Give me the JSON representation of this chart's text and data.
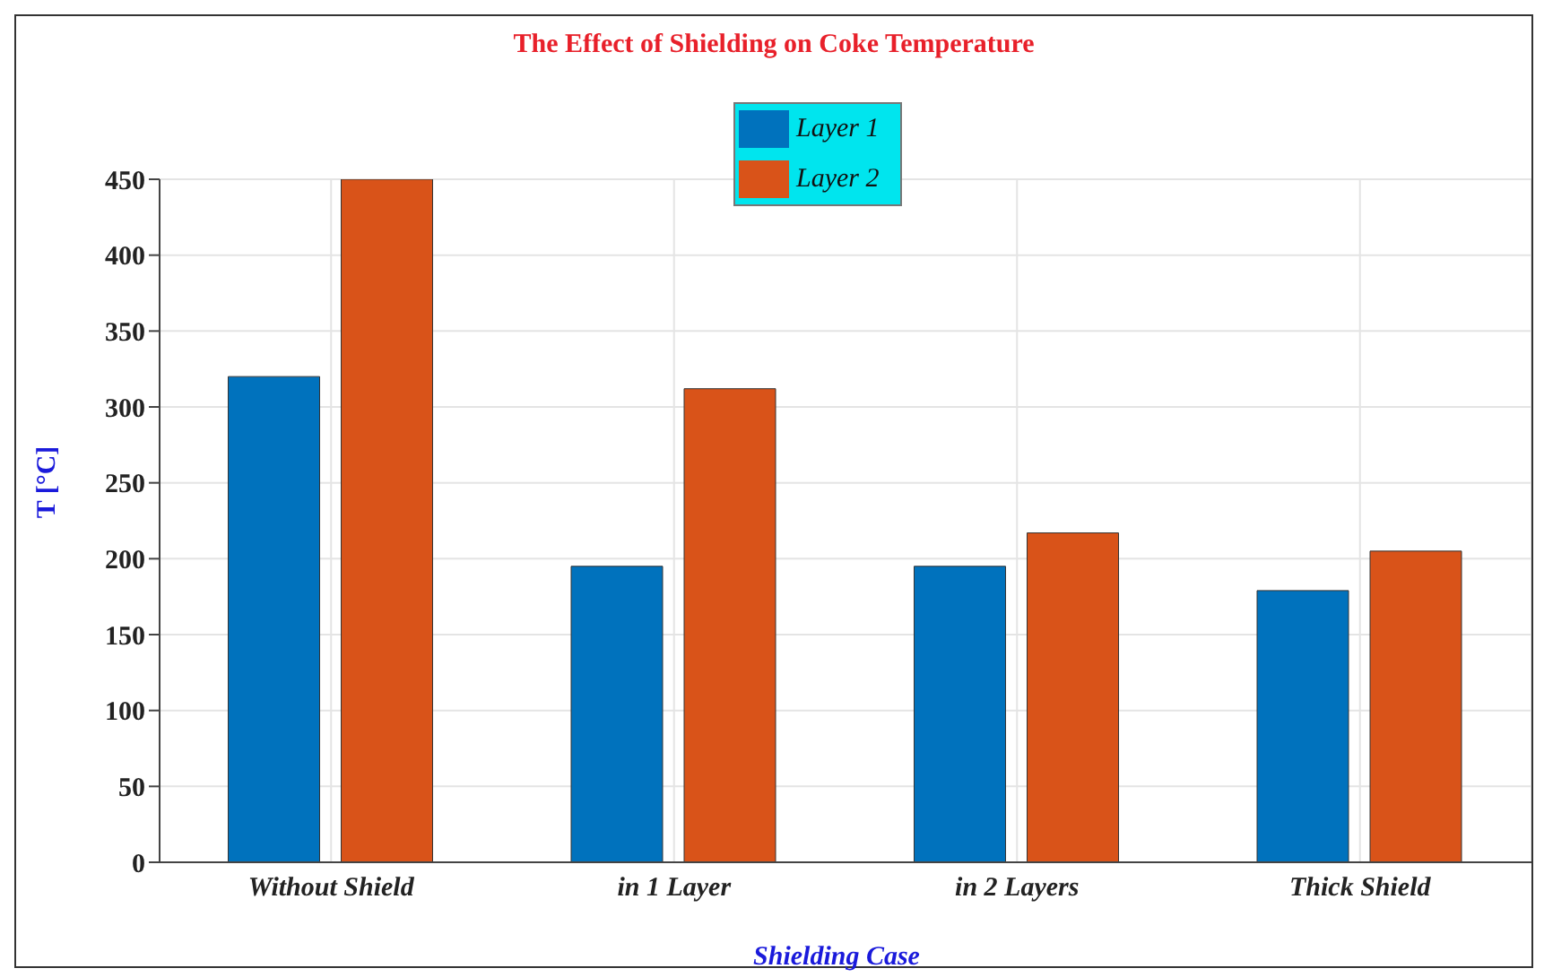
{
  "chart_data": {
    "type": "bar",
    "title": "The Effect of Shielding on Coke Temperature",
    "xlabel": "Shielding Case",
    "ylabel": "T [°C]",
    "categories": [
      "Without Shield",
      "in 1 Layer",
      "in 2 Layers",
      "Thick Shield"
    ],
    "series": [
      {
        "name": "Layer 1",
        "color": "#0072bd",
        "values": [
          320,
          195,
          195,
          179
        ]
      },
      {
        "name": "Layer 2",
        "color": "#d95319",
        "values": [
          450,
          312,
          217,
          205
        ]
      }
    ],
    "ylim": [
      0,
      450
    ],
    "yticks": [
      0,
      50,
      100,
      150,
      200,
      250,
      300,
      350,
      400,
      450
    ],
    "grid": true,
    "legend": "top"
  }
}
